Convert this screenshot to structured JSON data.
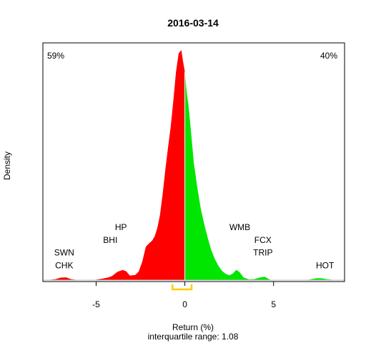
{
  "chart_data": {
    "type": "area",
    "title": "2016-03-14",
    "xlabel": "Return (%)",
    "subtitle": "interquartile range: 1.08",
    "ylabel": "Density",
    "xlim": [
      -8,
      9
    ],
    "ylim": [
      0,
      1
    ],
    "x_ticks": [
      -5,
      0,
      5
    ],
    "x_tick_labels": [
      "-5",
      "0",
      "5"
    ],
    "legend": "none",
    "pct_negative": "59%",
    "pct_positive": "40%",
    "colors": {
      "negative": "#ff0000",
      "positive": "#00e600",
      "iqr": "#ffcc00",
      "zero_line": "#ffffff"
    },
    "iqr_range": [
      -0.7,
      0.38
    ],
    "density": {
      "x": [
        -7.8,
        -7.3,
        -7.0,
        -6.7,
        -6.4,
        -6.0,
        -5.5,
        -5.0,
        -4.6,
        -4.3,
        -4.1,
        -3.8,
        -3.5,
        -3.3,
        -3.1,
        -2.8,
        -2.6,
        -2.4,
        -2.2,
        -2.0,
        -1.85,
        -1.7,
        -1.55,
        -1.4,
        -1.25,
        -1.1,
        -0.95,
        -0.8,
        -0.65,
        -0.5,
        -0.35,
        -0.2,
        -0.1,
        0.0,
        0.1,
        0.2,
        0.35,
        0.5,
        0.7,
        0.9,
        1.1,
        1.3,
        1.5,
        1.7,
        1.9,
        2.1,
        2.3,
        2.5,
        2.7,
        2.9,
        3.1,
        3.3,
        3.6,
        3.9,
        4.2,
        4.5,
        4.8,
        5.1,
        5.5,
        6.0,
        6.5,
        7.0,
        7.4,
        7.7,
        8.0,
        8.4,
        8.9
      ],
      "y": [
        0.0,
        0.004,
        0.011,
        0.012,
        0.004,
        0.0,
        0.0,
        0.002,
        0.007,
        0.012,
        0.018,
        0.036,
        0.044,
        0.038,
        0.02,
        0.022,
        0.037,
        0.08,
        0.145,
        0.161,
        0.171,
        0.19,
        0.227,
        0.283,
        0.376,
        0.48,
        0.575,
        0.664,
        0.78,
        0.905,
        0.985,
        1.0,
        0.95,
        0.905,
        0.82,
        0.76,
        0.642,
        0.513,
        0.403,
        0.31,
        0.241,
        0.18,
        0.128,
        0.09,
        0.061,
        0.04,
        0.027,
        0.021,
        0.028,
        0.045,
        0.034,
        0.012,
        0.003,
        0.004,
        0.011,
        0.015,
        0.002,
        0.0,
        0.0,
        0.0,
        0.0,
        0.002,
        0.008,
        0.008,
        0.004,
        0.001,
        0.0
      ]
    },
    "annotations": [
      {
        "text": "SWN",
        "x": -6.8,
        "y": 0.107
      },
      {
        "text": "CHK",
        "x": -6.8,
        "y": 0.052
      },
      {
        "text": "BHI",
        "x": -4.2,
        "y": 0.162
      },
      {
        "text": "HP",
        "x": -3.6,
        "y": 0.218
      },
      {
        "text": "WMB",
        "x": 3.1,
        "y": 0.218
      },
      {
        "text": "FCX",
        "x": 4.4,
        "y": 0.162
      },
      {
        "text": "TRIP",
        "x": 4.4,
        "y": 0.107
      },
      {
        "text": "HOT",
        "x": 7.9,
        "y": 0.052
      }
    ]
  }
}
